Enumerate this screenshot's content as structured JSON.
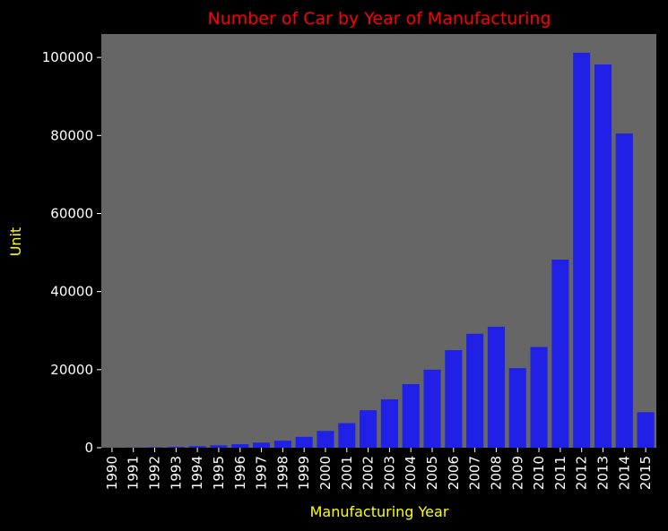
{
  "chart_data": {
    "type": "bar",
    "title": "Number of Car by Year of Manufacturing",
    "xlabel": "Manufacturing Year",
    "ylabel": "Unit",
    "categories": [
      "1990",
      "1991",
      "1992",
      "1993",
      "1994",
      "1995",
      "1996",
      "1997",
      "1998",
      "1999",
      "2000",
      "2001",
      "2002",
      "2003",
      "2004",
      "2005",
      "2006",
      "2007",
      "2008",
      "2009",
      "2010",
      "2011",
      "2012",
      "2013",
      "2014",
      "2015"
    ],
    "values": [
      40,
      60,
      100,
      200,
      400,
      600,
      900,
      1300,
      1800,
      2800,
      4300,
      6300,
      9600,
      12400,
      16300,
      20000,
      25000,
      29200,
      31000,
      20400,
      25800,
      48200,
      101200,
      98200,
      80500,
      9100
    ],
    "ylim": [
      0,
      106000
    ],
    "yticks": [
      0,
      20000,
      40000,
      60000,
      80000,
      100000
    ],
    "grid": false,
    "colors": {
      "background": "#000000",
      "plot_area": "#666666",
      "bar": "#2020e6",
      "title": "#ff0000",
      "axis_label": "#ffff00",
      "tick_label": "#ffffff"
    }
  }
}
